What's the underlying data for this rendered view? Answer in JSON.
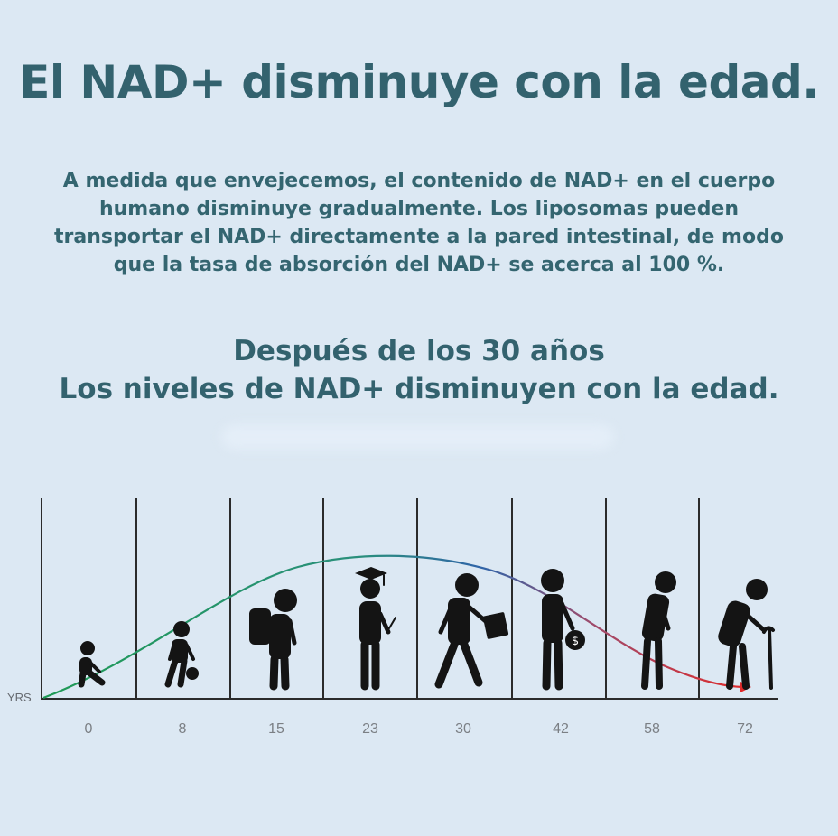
{
  "title": "El NAD+ disminuye con la edad.",
  "intro": "A medida que envejecemos, el contenido de NAD+ en el cuerpo humano disminuye gradualmente. Los liposomas pueden transportar el NAD+ directamente a la pared intestinal, de modo que la tasa de absorción del NAD+ se acerca al 100 %.",
  "subheading": {
    "line1": "Después de los 30 años",
    "line2": "Los niveles de NAD+ disminuyen con la edad."
  },
  "diagram": {
    "unit_label": "YRS",
    "ages": [
      "0",
      "8",
      "15",
      "23",
      "30",
      "42",
      "58",
      "72"
    ],
    "stages": [
      "baby-icon",
      "toddler-icon",
      "schoolchild-icon",
      "graduate-icon",
      "worker-icon",
      "adult-icon",
      "senior-icon",
      "elder-with-cane-icon"
    ],
    "colors": {
      "curve_start": "#1f9a55",
      "curve_mid": "#2f64a8",
      "curve_end": "#e02a2a",
      "figure": "#141414"
    }
  }
}
